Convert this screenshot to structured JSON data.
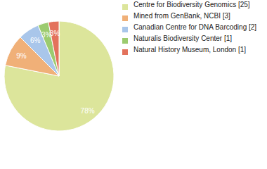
{
  "chart_data": {
    "type": "pie",
    "categories": [
      "Centre for Biodiversity Genomics [25]",
      "Mined from GenBank, NCBI [3]",
      "Canadian Centre for DNA Barcoding [2]",
      "Naturalis Biodiversity Center [1]",
      "Natural History Museum, London [1]"
    ],
    "values": [
      78.125,
      9.375,
      6.25,
      3.125,
      3.125
    ],
    "value_labels": [
      "78%",
      "9%",
      "6%",
      "3%",
      "3%"
    ],
    "colors": [
      "#dce59b",
      "#f0b078",
      "#a9c6ea",
      "#9ccb6f",
      "#e3725c"
    ],
    "data_labels": true,
    "legend": "right"
  }
}
